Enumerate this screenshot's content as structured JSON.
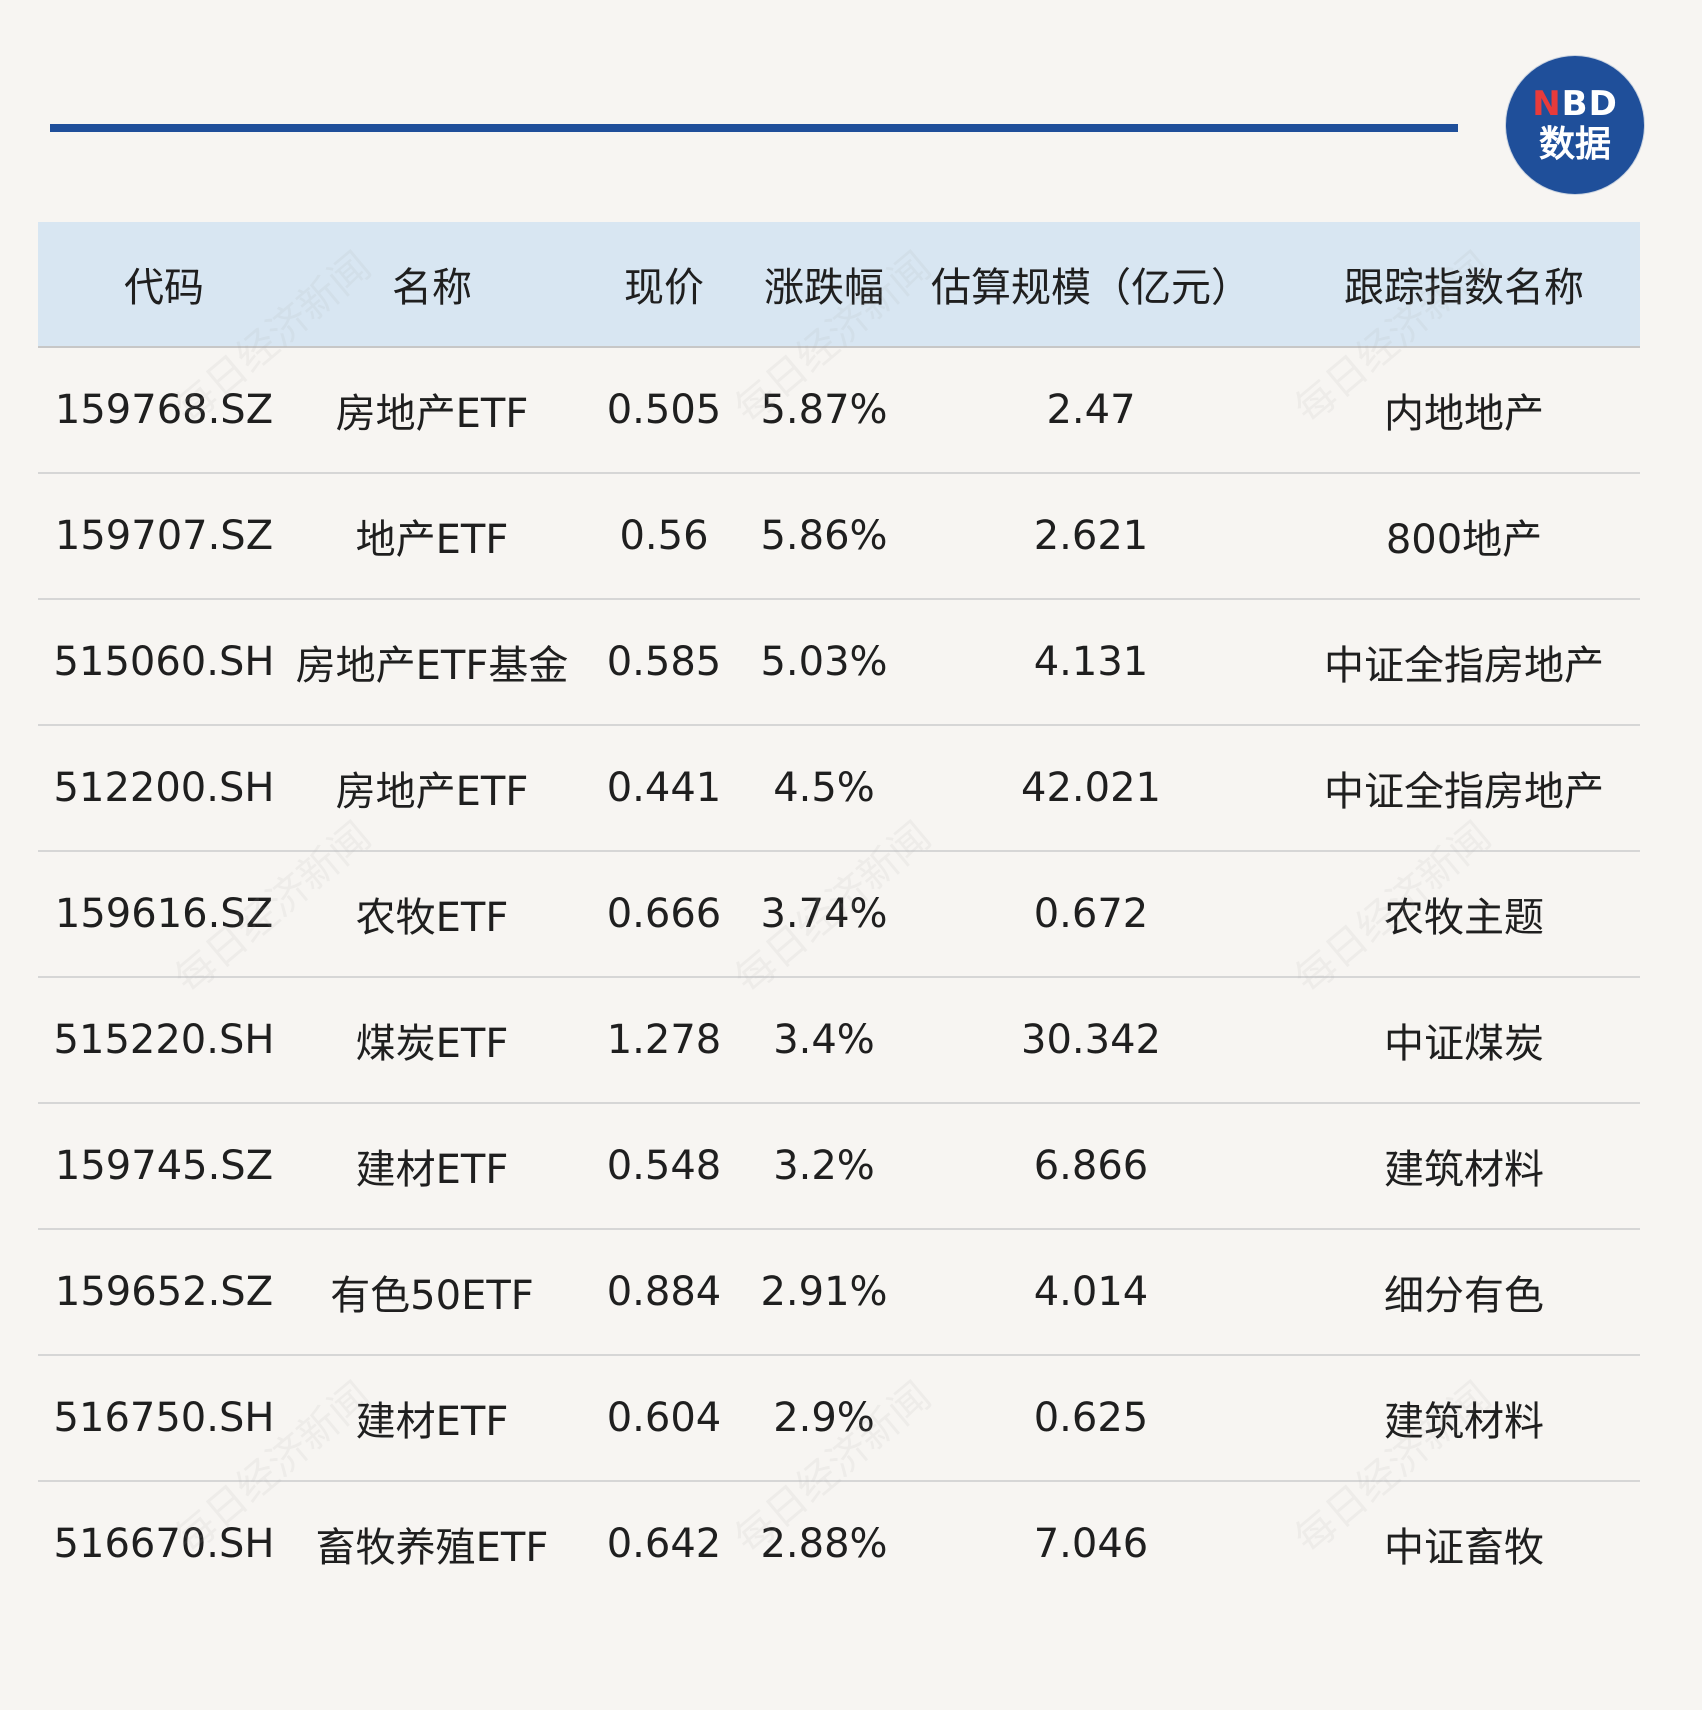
{
  "header_rule_color": "#1f4f9a",
  "logo": {
    "letter_n": "N",
    "letters_bd": "BD",
    "bottom": "数据",
    "background": "#1f4f9a",
    "accent": "#e83b3b"
  },
  "watermark": "每日经济新闻",
  "table": {
    "headers": [
      "代码",
      "名称",
      "现价",
      "涨跌幅",
      "估算规模（亿元）",
      "跟踪指数名称"
    ],
    "rows": [
      [
        "159768.SZ",
        "房地产ETF",
        "0.505",
        "5.87%",
        "2.47",
        "内地地产"
      ],
      [
        "159707.SZ",
        "地产ETF",
        "0.56",
        "5.86%",
        "2.621",
        "800地产"
      ],
      [
        "515060.SH",
        "房地产ETF基金",
        "0.585",
        "5.03%",
        "4.131",
        "中证全指房地产"
      ],
      [
        "512200.SH",
        "房地产ETF",
        "0.441",
        "4.5%",
        "42.021",
        "中证全指房地产"
      ],
      [
        "159616.SZ",
        "农牧ETF",
        "0.666",
        "3.74%",
        "0.672",
        "农牧主题"
      ],
      [
        "515220.SH",
        "煤炭ETF",
        "1.278",
        "3.4%",
        "30.342",
        "中证煤炭"
      ],
      [
        "159745.SZ",
        "建材ETF",
        "0.548",
        "3.2%",
        "6.866",
        "建筑材料"
      ],
      [
        "159652.SZ",
        "有色50ETF",
        "0.884",
        "2.91%",
        "4.014",
        "细分有色"
      ],
      [
        "516750.SH",
        "建材ETF",
        "0.604",
        "2.9%",
        "0.625",
        "建筑材料"
      ],
      [
        "516670.SH",
        "畜牧养殖ETF",
        "0.642",
        "2.88%",
        "7.046",
        "中证畜牧"
      ]
    ]
  }
}
